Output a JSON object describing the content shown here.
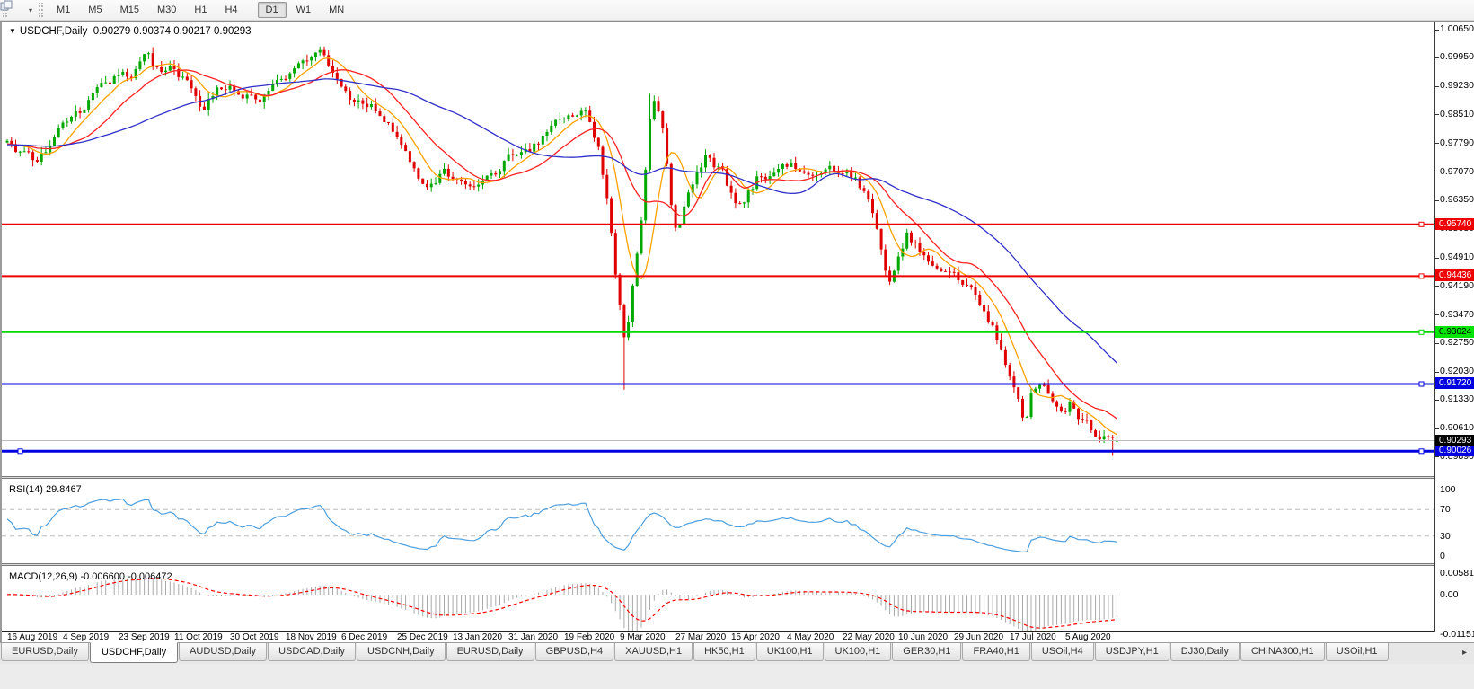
{
  "toolbar": {
    "timeframes": [
      "M1",
      "M5",
      "M15",
      "M30",
      "H1",
      "H4",
      "D1",
      "W1",
      "MN"
    ],
    "active_timeframe": "D1",
    "dropdown_glyph": "▾"
  },
  "header": {
    "expand_glyph": "▼",
    "title": "USDCHF,Daily",
    "ohlc_text": "0.90279 0.90374 0.90217 0.90293"
  },
  "rsi": {
    "label": "RSI(14) 29.8467",
    "levels": [
      "100",
      "70",
      "30",
      "0"
    ]
  },
  "macd": {
    "label": "MACD(12,26,9) -0.006600 -0.006472",
    "axis_ticks": [
      "0.005818",
      "0.00",
      "-0.011514"
    ]
  },
  "tabs": {
    "items": [
      "EURUSD,Daily",
      "USDCHF,Daily",
      "AUDUSD,Daily",
      "USDCAD,Daily",
      "USDCNH,Daily",
      "EURUSD,Daily",
      "GBPUSD,H4",
      "XAUUSD,H1",
      "HK50,H1",
      "UK100,H1",
      "UK100,H1",
      "GER30,H1",
      "FRA40,H1",
      "USOil,H4",
      "USDJPY,H1",
      "DJ30,Daily",
      "CHINA300,H1",
      "USOil,H1"
    ],
    "active_index": 1,
    "scroll_glyph": "▸"
  },
  "chart_data": {
    "type": "candlestick",
    "symbol": "USDCHF",
    "timeframe": "Daily",
    "ohlc_current": {
      "open": 0.90279,
      "high": 0.90374,
      "low": 0.90217,
      "close": 0.90293
    },
    "bars": 260,
    "noise_seed": 11,
    "price_range": {
      "top": 1.0085,
      "bottom": 0.894
    },
    "price_axis_ticks": [
      "1.00650",
      "0.99950",
      "0.99230",
      "0.98510",
      "0.97790",
      "0.97070",
      "0.96350",
      "0.95630",
      "0.94910",
      "0.94190",
      "0.93470",
      "0.92750",
      "0.92030",
      "0.91330",
      "0.90610",
      "0.89890"
    ],
    "horizontal_lines": [
      {
        "label": "0.95740",
        "price": 0.9574,
        "color": "#ee0000",
        "tag_bg": "#ee0000",
        "tag_text": "#ffffff",
        "width": 2
      },
      {
        "label": "0.94436",
        "price": 0.94436,
        "color": "#ee0000",
        "tag_bg": "#ee0000",
        "tag_text": "#ffffff",
        "width": 2
      },
      {
        "label": "0.93024",
        "price": 0.93024,
        "color": "#00d800",
        "tag_bg": "#00e400",
        "tag_text": "#000000",
        "width": 2
      },
      {
        "label": "0.91720",
        "price": 0.9172,
        "color": "#0000e0",
        "tag_bg": "#0000e0",
        "tag_text": "#ffffff",
        "width": 2
      },
      {
        "label": "0.90026",
        "price": 0.90026,
        "color": "#0000e0",
        "tag_bg": "#0000e0",
        "tag_text": "#ffffff",
        "width": 3,
        "left_marker": true
      }
    ],
    "current_price": {
      "label": "0.90293",
      "price": 0.90293,
      "line_color": "#bcbcbc",
      "tag_bg": "#000000",
      "tag_text": "#ffffff"
    },
    "colors": {
      "up": "#00a800",
      "down": "#e00000",
      "rsi_line": "#4d9fdf",
      "macd_hist": "#a8a8a8",
      "macd_signal": "#ff0000",
      "rsi_grid": "#bbbbbb"
    },
    "moving_averages": [
      {
        "period": 8,
        "color": "#ffa000"
      },
      {
        "period": 18,
        "color": "#ff2020"
      },
      {
        "period": 45,
        "color": "#3030c8"
      }
    ],
    "rsi": {
      "period": 14,
      "current": 29.8467,
      "levels": [
        100,
        70,
        30,
        0
      ],
      "dashed_levels": [
        70,
        30
      ]
    },
    "macd": {
      "fast": 12,
      "slow": 26,
      "signal": 9,
      "current_macd": -0.0066,
      "current_signal": -0.006472,
      "axis_ticks": [
        0.005818,
        0.0,
        -0.011514
      ]
    },
    "x_labels": [
      "16 Aug 2019",
      "4 Sep 2019",
      "23 Sep 2019",
      "11 Oct 2019",
      "30 Oct 2019",
      "18 Nov 2019",
      "6 Dec 2019",
      "25 Dec 2019",
      "13 Jan 2020",
      "31 Jan 2020",
      "19 Feb 2020",
      "9 Mar 2020",
      "27 Mar 2020",
      "15 Apr 2020",
      "4 May 2020",
      "22 May 2020",
      "10 Jun 2020",
      "29 Jun 2020",
      "17 Jul 2020",
      "5 Aug 2020"
    ],
    "price_path": [
      [
        0.0,
        0.9775
      ],
      [
        0.013,
        0.9745
      ],
      [
        0.024,
        0.9728
      ],
      [
        0.035,
        0.9768
      ],
      [
        0.048,
        0.9845
      ],
      [
        0.065,
        0.986
      ],
      [
        0.081,
        0.9915
      ],
      [
        0.097,
        0.994
      ],
      [
        0.113,
        0.9945
      ],
      [
        0.121,
        0.9985
      ],
      [
        0.129,
        0.999
      ],
      [
        0.137,
        0.995
      ],
      [
        0.148,
        0.9975
      ],
      [
        0.161,
        0.993
      ],
      [
        0.177,
        0.9868
      ],
      [
        0.194,
        0.9922
      ],
      [
        0.21,
        0.9905
      ],
      [
        0.226,
        0.989
      ],
      [
        0.242,
        0.9928
      ],
      [
        0.258,
        0.9958
      ],
      [
        0.274,
        0.9985
      ],
      [
        0.282,
        0.9998
      ],
      [
        0.29,
        0.996
      ],
      [
        0.306,
        0.9905
      ],
      [
        0.323,
        0.9878
      ],
      [
        0.339,
        0.9845
      ],
      [
        0.355,
        0.9788
      ],
      [
        0.367,
        0.9718
      ],
      [
        0.379,
        0.9668
      ],
      [
        0.395,
        0.97
      ],
      [
        0.411,
        0.9672
      ],
      [
        0.427,
        0.968
      ],
      [
        0.444,
        0.9722
      ],
      [
        0.46,
        0.9748
      ],
      [
        0.476,
        0.9772
      ],
      [
        0.492,
        0.9812
      ],
      [
        0.504,
        0.984
      ],
      [
        0.512,
        0.9825
      ],
      [
        0.52,
        0.9845
      ],
      [
        0.532,
        0.977
      ],
      [
        0.54,
        0.964
      ],
      [
        0.548,
        0.945
      ],
      [
        0.556,
        0.9275
      ],
      [
        0.56,
        0.933
      ],
      [
        0.565,
        0.944
      ],
      [
        0.569,
        0.953
      ],
      [
        0.573,
        0.962
      ],
      [
        0.577,
        0.978
      ],
      [
        0.581,
        0.9895
      ],
      [
        0.585,
        0.987
      ],
      [
        0.589,
        0.983
      ],
      [
        0.593,
        0.976
      ],
      [
        0.6,
        0.956
      ],
      [
        0.605,
        0.954
      ],
      [
        0.611,
        0.962
      ],
      [
        0.617,
        0.966
      ],
      [
        0.623,
        0.971
      ],
      [
        0.629,
        0.9745
      ],
      [
        0.637,
        0.9725
      ],
      [
        0.645,
        0.97
      ],
      [
        0.653,
        0.965
      ],
      [
        0.661,
        0.9625
      ],
      [
        0.669,
        0.966
      ],
      [
        0.677,
        0.969
      ],
      [
        0.685,
        0.9698
      ],
      [
        0.694,
        0.9705
      ],
      [
        0.702,
        0.9718
      ],
      [
        0.71,
        0.9722
      ],
      [
        0.718,
        0.97
      ],
      [
        0.726,
        0.9685
      ],
      [
        0.734,
        0.9705
      ],
      [
        0.742,
        0.9722
      ],
      [
        0.75,
        0.9705
      ],
      [
        0.758,
        0.97
      ],
      [
        0.766,
        0.968
      ],
      [
        0.774,
        0.965
      ],
      [
        0.782,
        0.959
      ],
      [
        0.79,
        0.948
      ],
      [
        0.796,
        0.9428
      ],
      [
        0.802,
        0.949
      ],
      [
        0.81,
        0.9552
      ],
      [
        0.818,
        0.9528
      ],
      [
        0.823,
        0.9498
      ],
      [
        0.831,
        0.9478
      ],
      [
        0.839,
        0.9482
      ],
      [
        0.847,
        0.9468
      ],
      [
        0.855,
        0.9448
      ],
      [
        0.863,
        0.942
      ],
      [
        0.871,
        0.9398
      ],
      [
        0.879,
        0.936
      ],
      [
        0.887,
        0.9318
      ],
      [
        0.895,
        0.9272
      ],
      [
        0.903,
        0.9198
      ],
      [
        0.911,
        0.913
      ],
      [
        0.917,
        0.9078
      ],
      [
        0.923,
        0.9145
      ],
      [
        0.929,
        0.918
      ],
      [
        0.935,
        0.9158
      ],
      [
        0.941,
        0.9138
      ],
      [
        0.947,
        0.9108
      ],
      [
        0.953,
        0.9088
      ],
      [
        0.959,
        0.9118
      ],
      [
        0.967,
        0.909
      ],
      [
        0.975,
        0.9062
      ],
      [
        0.983,
        0.905
      ],
      [
        0.991,
        0.9042
      ],
      [
        1.0,
        0.9029
      ]
    ],
    "forced_points": [
      {
        "t": 0.282,
        "high": 1.0022
      },
      {
        "t": 0.556,
        "low": 0.9158
      },
      {
        "t": 0.581,
        "high": 0.9903
      },
      {
        "t": 0.996,
        "low": 0.8991
      }
    ]
  }
}
